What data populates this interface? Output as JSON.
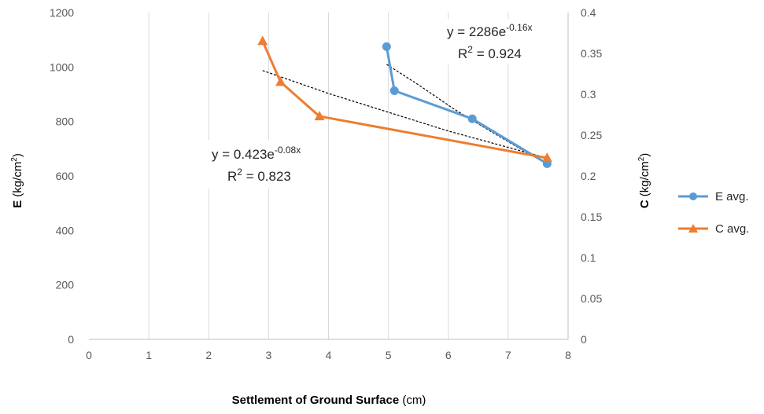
{
  "chart_data": {
    "type": "line",
    "title": "",
    "xlabel": {
      "bold": "Settlement of Ground Surface",
      "normal": " (cm)"
    },
    "ylabel_left": {
      "bold": "E",
      "normal": " (kg/cm",
      "sup": "2",
      "close": ")"
    },
    "ylabel_right": {
      "bold": "C",
      "normal": " (kg/cm",
      "sup": "2",
      "close": ")"
    },
    "xlim": [
      0,
      8
    ],
    "ylim_left": [
      0,
      1200
    ],
    "ylim_right": [
      0,
      0.4
    ],
    "x_ticks": [
      "0",
      "1",
      "2",
      "3",
      "4",
      "5",
      "6",
      "7",
      "8"
    ],
    "y_left_ticks": [
      "0",
      "200",
      "400",
      "600",
      "800",
      "1000",
      "1200"
    ],
    "y_right_ticks": [
      "0",
      "0.05",
      "0.1",
      "0.15",
      "0.2",
      "0.25",
      "0.3",
      "0.35",
      "0.4"
    ],
    "grid": "vertical",
    "legend_position": "right",
    "series": [
      {
        "name": "E avg.",
        "axis": "left",
        "color": "#5B9BD5",
        "marker": "circle",
        "x": [
          4.97,
          5.1,
          6.4,
          7.65
        ],
        "y": [
          1075,
          913,
          810,
          645
        ]
      },
      {
        "name": "C avg.",
        "axis": "right",
        "color": "#ED7D31",
        "marker": "triangle",
        "x": [
          2.9,
          3.2,
          3.85,
          7.65
        ],
        "y": [
          0.365,
          0.315,
          0.273,
          0.222
        ]
      }
    ],
    "trendlines": [
      {
        "series": "E avg.",
        "type": "exponential",
        "equation": {
          "base": "y = 2286e",
          "exp": "-0.16x"
        },
        "r2": {
          "label": "R",
          "sup": "2",
          "value": " = 0.924"
        },
        "x_range": [
          4.97,
          7.65
        ],
        "points": [
          [
            4.97,
            1010
          ],
          [
            5.5,
            935
          ],
          [
            6.1,
            845
          ],
          [
            6.7,
            765
          ],
          [
            7.2,
            700
          ],
          [
            7.65,
            648
          ]
        ]
      },
      {
        "series": "C avg.",
        "type": "exponential",
        "equation": {
          "base": "y = 0.423e",
          "exp": "-0.08x"
        },
        "r2": {
          "label": "R",
          "sup": "2",
          "value": " = 0.823"
        },
        "x_range": [
          2.9,
          7.65
        ],
        "points": [
          [
            2.9,
            0.329
          ],
          [
            4.0,
            0.301
          ],
          [
            5.0,
            0.278
          ],
          [
            6.0,
            0.255
          ],
          [
            7.0,
            0.235
          ],
          [
            7.65,
            0.222
          ]
        ]
      }
    ]
  }
}
